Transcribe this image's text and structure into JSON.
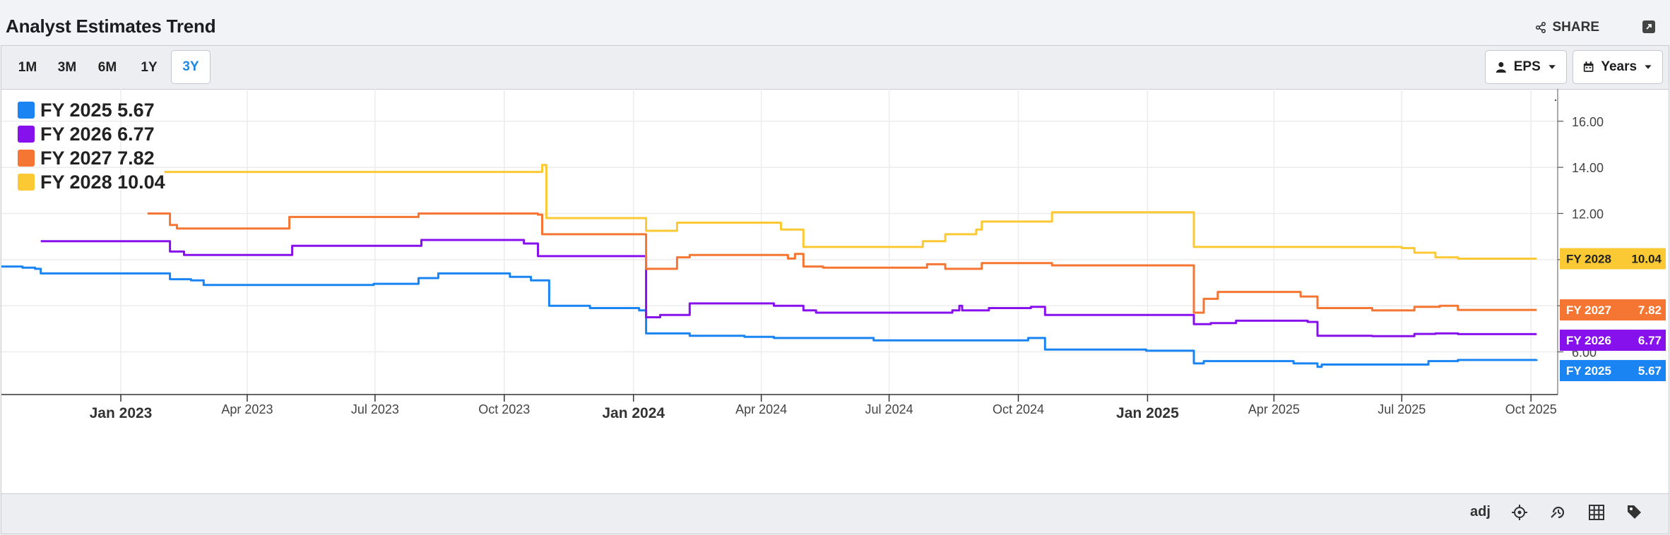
{
  "header": {
    "title": "Analyst Estimates Trend",
    "share_label": "SHARE"
  },
  "toolbar": {
    "ranges": [
      "1M",
      "3M",
      "6M",
      "1Y",
      "3Y"
    ],
    "active_range": "3Y",
    "metric_label": "EPS",
    "period_label": "Years"
  },
  "footer": {
    "adj_label": "adj",
    "icons": [
      "crosshair-icon",
      "history-icon",
      "grid-icon",
      "tags-icon"
    ]
  },
  "chart_data": {
    "type": "line",
    "xaxis_ticks": [
      {
        "date": "2023-01-01",
        "label": "Jan 2023",
        "bold": true
      },
      {
        "date": "2023-04-01",
        "label": "Apr 2023",
        "bold": false
      },
      {
        "date": "2023-07-01",
        "label": "Jul 2023",
        "bold": false
      },
      {
        "date": "2023-10-01",
        "label": "Oct 2023",
        "bold": false
      },
      {
        "date": "2024-01-01",
        "label": "Jan 2024",
        "bold": true
      },
      {
        "date": "2024-04-01",
        "label": "Apr 2024",
        "bold": false
      },
      {
        "date": "2024-07-01",
        "label": "Jul 2024",
        "bold": false
      },
      {
        "date": "2024-10-01",
        "label": "Oct 2024",
        "bold": false
      },
      {
        "date": "2025-01-01",
        "label": "Jan 2025",
        "bold": true
      },
      {
        "date": "2025-04-01",
        "label": "Apr 2025",
        "bold": false
      },
      {
        "date": "2025-07-01",
        "label": "Jul 2025",
        "bold": false
      },
      {
        "date": "2025-10-01",
        "label": "Oct 2025",
        "bold": false
      }
    ],
    "xlim": [
      "2022-10-08",
      "2025-10-20"
    ],
    "ylim": [
      4.15,
      17.4
    ],
    "yaxis_ticks": [
      6,
      8,
      10,
      12,
      14,
      16
    ],
    "yaxis_labels": [
      "6.00",
      "",
      "",
      "12.00",
      "14.00",
      "16.00"
    ],
    "legend_position": "top-left",
    "grid": true,
    "series": [
      {
        "name": "FY 2025",
        "value_label": "5.67",
        "color": "#1a85f2",
        "points": [
          [
            "2022-10-08",
            9.7
          ],
          [
            "2022-10-20",
            9.7
          ],
          [
            "2022-10-23",
            9.65
          ],
          [
            "2022-11-01",
            9.6
          ],
          [
            "2022-11-05",
            9.4
          ],
          [
            "2023-02-01",
            9.4
          ],
          [
            "2023-02-05",
            9.15
          ],
          [
            "2023-02-20",
            9.1
          ],
          [
            "2023-03-01",
            8.9
          ],
          [
            "2023-06-20",
            8.9
          ],
          [
            "2023-06-30",
            8.95
          ],
          [
            "2023-08-01",
            9.2
          ],
          [
            "2023-08-15",
            9.4
          ],
          [
            "2023-10-01",
            9.4
          ],
          [
            "2023-10-05",
            9.25
          ],
          [
            "2023-10-20",
            9.1
          ],
          [
            "2023-11-02",
            8.0
          ],
          [
            "2023-12-01",
            7.9
          ],
          [
            "2024-01-05",
            7.8
          ],
          [
            "2024-01-10",
            6.8
          ],
          [
            "2024-02-10",
            6.7
          ],
          [
            "2024-03-20",
            6.65
          ],
          [
            "2024-04-10",
            6.6
          ],
          [
            "2024-06-01",
            6.6
          ],
          [
            "2024-06-20",
            6.5
          ],
          [
            "2024-09-15",
            6.5
          ],
          [
            "2024-10-08",
            6.6
          ],
          [
            "2024-10-20",
            6.1
          ],
          [
            "2024-12-31",
            6.05
          ],
          [
            "2025-02-01",
            6.05
          ],
          [
            "2025-02-03",
            5.5
          ],
          [
            "2025-02-10",
            5.6
          ],
          [
            "2025-03-01",
            5.6
          ],
          [
            "2025-04-15",
            5.5
          ],
          [
            "2025-04-28",
            5.5
          ],
          [
            "2025-05-02",
            5.35
          ],
          [
            "2025-05-05",
            5.45
          ],
          [
            "2025-06-10",
            5.45
          ],
          [
            "2025-07-01",
            5.45
          ],
          [
            "2025-07-20",
            5.6
          ],
          [
            "2025-08-10",
            5.65
          ],
          [
            "2025-10-05",
            5.67
          ]
        ]
      },
      {
        "name": "FY 2026",
        "value_label": "6.77",
        "color": "#8711ec",
        "points": [
          [
            "2022-11-05",
            10.8
          ],
          [
            "2023-01-28",
            10.8
          ],
          [
            "2023-02-01",
            10.8
          ],
          [
            "2023-02-05",
            10.35
          ],
          [
            "2023-02-15",
            10.2
          ],
          [
            "2023-05-01",
            10.2
          ],
          [
            "2023-05-03",
            10.6
          ],
          [
            "2023-08-01",
            10.6
          ],
          [
            "2023-08-03",
            10.85
          ],
          [
            "2023-10-05",
            10.85
          ],
          [
            "2023-10-15",
            10.7
          ],
          [
            "2023-10-25",
            10.15
          ],
          [
            "2024-01-05",
            10.15
          ],
          [
            "2024-01-10",
            7.5
          ],
          [
            "2024-01-20",
            7.6
          ],
          [
            "2024-02-10",
            8.1
          ],
          [
            "2024-04-10",
            8.0
          ],
          [
            "2024-05-01",
            7.8
          ],
          [
            "2024-05-10",
            7.7
          ],
          [
            "2024-08-01",
            7.7
          ],
          [
            "2024-08-15",
            7.8
          ],
          [
            "2024-08-20",
            8.0
          ],
          [
            "2024-08-22",
            7.8
          ],
          [
            "2024-09-10",
            7.9
          ],
          [
            "2024-10-01",
            7.9
          ],
          [
            "2024-10-10",
            7.95
          ],
          [
            "2024-10-20",
            7.6
          ],
          [
            "2025-01-30",
            7.6
          ],
          [
            "2025-02-03",
            7.2
          ],
          [
            "2025-02-15",
            7.25
          ],
          [
            "2025-03-05",
            7.35
          ],
          [
            "2025-04-10",
            7.35
          ],
          [
            "2025-04-25",
            7.3
          ],
          [
            "2025-05-02",
            6.7
          ],
          [
            "2025-06-10",
            6.68
          ],
          [
            "2025-07-01",
            6.68
          ],
          [
            "2025-07-10",
            6.78
          ],
          [
            "2025-07-25",
            6.8
          ],
          [
            "2025-08-10",
            6.77
          ],
          [
            "2025-10-05",
            6.77
          ]
        ]
      },
      {
        "name": "FY 2027",
        "value_label": "7.82",
        "color": "#f57632",
        "points": [
          [
            "2023-01-20",
            12.0
          ],
          [
            "2023-02-01",
            12.0
          ],
          [
            "2023-02-05",
            11.5
          ],
          [
            "2023-02-10",
            11.35
          ],
          [
            "2023-04-28",
            11.35
          ],
          [
            "2023-05-01",
            11.85
          ],
          [
            "2023-07-25",
            11.85
          ],
          [
            "2023-08-01",
            12.0
          ],
          [
            "2023-10-01",
            12.0
          ],
          [
            "2023-10-25",
            11.95
          ],
          [
            "2023-10-28",
            11.1
          ],
          [
            "2024-01-05",
            11.1
          ],
          [
            "2024-01-10",
            9.6
          ],
          [
            "2024-01-25",
            9.6
          ],
          [
            "2024-02-01",
            10.1
          ],
          [
            "2024-02-10",
            10.2
          ],
          [
            "2024-04-10",
            10.2
          ],
          [
            "2024-04-20",
            10.05
          ],
          [
            "2024-04-25",
            10.25
          ],
          [
            "2024-05-01",
            9.7
          ],
          [
            "2024-05-15",
            9.65
          ],
          [
            "2024-07-25",
            9.65
          ],
          [
            "2024-07-28",
            9.8
          ],
          [
            "2024-08-10",
            9.6
          ],
          [
            "2024-09-01",
            9.6
          ],
          [
            "2024-09-05",
            9.85
          ],
          [
            "2024-10-20",
            9.85
          ],
          [
            "2024-10-25",
            9.75
          ],
          [
            "2025-02-01",
            9.75
          ],
          [
            "2025-02-03",
            7.7
          ],
          [
            "2025-02-10",
            8.3
          ],
          [
            "2025-02-20",
            8.6
          ],
          [
            "2025-04-10",
            8.6
          ],
          [
            "2025-04-20",
            8.4
          ],
          [
            "2025-05-02",
            7.9
          ],
          [
            "2025-06-10",
            7.8
          ],
          [
            "2025-07-01",
            7.8
          ],
          [
            "2025-07-10",
            7.95
          ],
          [
            "2025-07-28",
            8.0
          ],
          [
            "2025-08-10",
            7.82
          ],
          [
            "2025-10-05",
            7.82
          ]
        ]
      },
      {
        "name": "FY 2028",
        "value_label": "10.04",
        "color": "#fbc934",
        "points": [
          [
            "2023-02-01",
            13.8
          ],
          [
            "2023-10-28",
            14.1
          ],
          [
            "2023-10-31",
            11.8
          ],
          [
            "2024-01-05",
            11.8
          ],
          [
            "2024-01-10",
            11.25
          ],
          [
            "2024-01-25",
            11.25
          ],
          [
            "2024-02-01",
            11.6
          ],
          [
            "2024-04-10",
            11.6
          ],
          [
            "2024-04-15",
            11.3
          ],
          [
            "2024-05-01",
            10.55
          ],
          [
            "2024-07-20",
            10.55
          ],
          [
            "2024-07-25",
            10.8
          ],
          [
            "2024-08-10",
            11.1
          ],
          [
            "2024-09-01",
            11.3
          ],
          [
            "2024-09-05",
            11.65
          ],
          [
            "2024-10-20",
            11.65
          ],
          [
            "2024-10-25",
            12.05
          ],
          [
            "2025-02-01",
            12.05
          ],
          [
            "2025-02-03",
            10.55
          ],
          [
            "2025-07-01",
            10.5
          ],
          [
            "2025-07-10",
            10.3
          ],
          [
            "2025-07-25",
            10.1
          ],
          [
            "2025-08-10",
            10.04
          ],
          [
            "2025-10-05",
            10.04
          ]
        ]
      }
    ]
  }
}
